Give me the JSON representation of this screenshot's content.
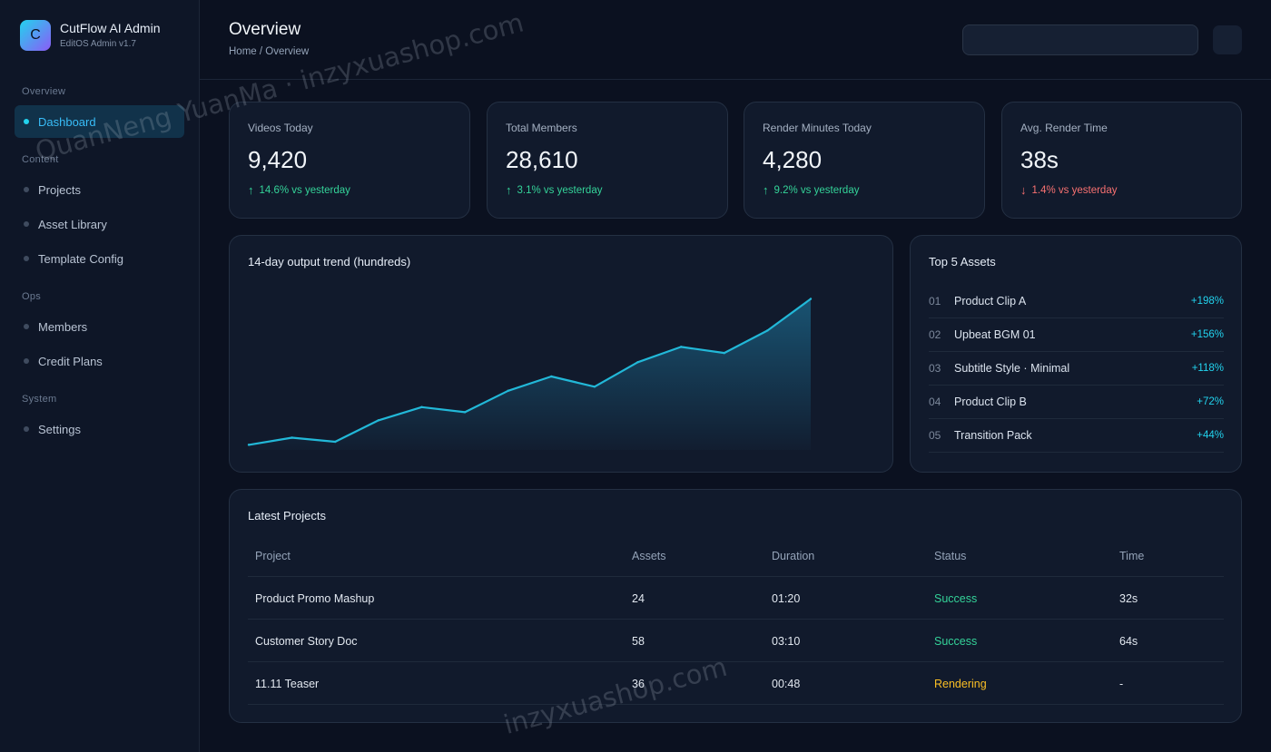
{
  "brand": {
    "logo_letter": "C",
    "name": "CutFlow AI Admin",
    "subtitle": "EditOS Admin v1.7"
  },
  "sidebar": {
    "sections": [
      {
        "title": "Overview",
        "items": [
          {
            "label": "Dashboard",
            "active": true
          }
        ]
      },
      {
        "title": "Content",
        "items": [
          {
            "label": "Projects"
          },
          {
            "label": "Asset Library"
          },
          {
            "label": "Template Config"
          }
        ]
      },
      {
        "title": "Ops",
        "items": [
          {
            "label": "Members"
          },
          {
            "label": "Credit Plans"
          }
        ]
      },
      {
        "title": "System",
        "items": [
          {
            "label": "Settings"
          }
        ]
      }
    ]
  },
  "header": {
    "title": "Overview",
    "breadcrumb": "Home / Overview"
  },
  "stats": [
    {
      "label": "Videos Today",
      "value": "9,420",
      "direction": "up",
      "arrow": "↑",
      "change": "14.6% vs yesterday"
    },
    {
      "label": "Total Members",
      "value": "28,610",
      "direction": "up",
      "arrow": "↑",
      "change": "3.1% vs yesterday"
    },
    {
      "label": "Render Minutes Today",
      "value": "4,280",
      "direction": "up",
      "arrow": "↑",
      "change": "9.2% vs yesterday"
    },
    {
      "label": "Avg. Render Time",
      "value": "38s",
      "direction": "down",
      "arrow": "↓",
      "change": "1.4% vs yesterday"
    }
  ],
  "chart_data": {
    "type": "area",
    "title": "14-day output trend (hundreds)",
    "x": [
      1,
      2,
      3,
      4,
      5,
      6,
      7,
      8,
      9,
      10,
      11,
      12,
      13,
      14
    ],
    "values": [
      0.5,
      1.2,
      0.8,
      2.9,
      4.2,
      3.7,
      5.8,
      7.2,
      6.2,
      8.6,
      10.1,
      9.5,
      11.7,
      14.8
    ],
    "ylim": [
      0,
      16
    ],
    "grid": false,
    "colors": {
      "line": "#22b8d8",
      "fill": "#1a5d7e"
    }
  },
  "top_assets": {
    "title": "Top 5 Assets",
    "items": [
      {
        "rank": "01",
        "name": "Product Clip A",
        "pct": "+198%"
      },
      {
        "rank": "02",
        "name": "Upbeat BGM 01",
        "pct": "+156%"
      },
      {
        "rank": "03",
        "name": "Subtitle Style · Minimal",
        "pct": "+118%"
      },
      {
        "rank": "04",
        "name": "Product Clip B",
        "pct": "+72%"
      },
      {
        "rank": "05",
        "name": "Transition Pack",
        "pct": "+44%"
      }
    ]
  },
  "projects": {
    "title": "Latest Projects",
    "columns": [
      "Project",
      "Assets",
      "Duration",
      "Status",
      "Time"
    ],
    "rows": [
      {
        "project": "Product Promo Mashup",
        "assets": "24",
        "duration": "01:20",
        "status": "Success",
        "status_kind": "success",
        "time": "32s"
      },
      {
        "project": "Customer Story Doc",
        "assets": "58",
        "duration": "03:10",
        "status": "Success",
        "status_kind": "success",
        "time": "64s"
      },
      {
        "project": "11.11 Teaser",
        "assets": "36",
        "duration": "00:48",
        "status": "Rendering",
        "status_kind": "rendering",
        "time": "-"
      }
    ]
  },
  "watermarks": [
    "QuanNeng YuanMa · inzyxuashop.com",
    "inzyxuashop.com"
  ],
  "colors": {
    "accent": "#22d3ee",
    "success": "#34d399",
    "danger": "#f87171",
    "warning": "#fbbf24",
    "background": "#0b1120",
    "card": "#111a2c"
  }
}
